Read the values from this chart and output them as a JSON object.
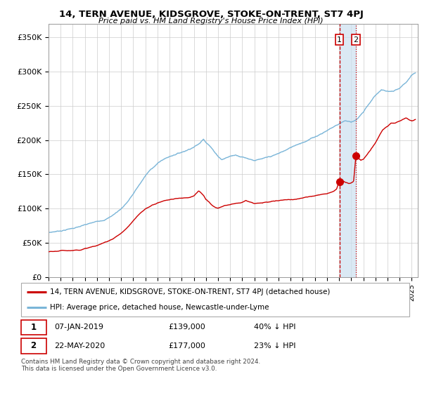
{
  "title": "14, TERN AVENUE, KIDSGROVE, STOKE-ON-TRENT, ST7 4PJ",
  "subtitle": "Price paid vs. HM Land Registry's House Price Index (HPI)",
  "ylabel_ticks": [
    "£0",
    "£50K",
    "£100K",
    "£150K",
    "£200K",
    "£250K",
    "£300K",
    "£350K"
  ],
  "ytick_values": [
    0,
    50000,
    100000,
    150000,
    200000,
    250000,
    300000,
    350000
  ],
  "ylim": [
    0,
    370000
  ],
  "xlim_start": 1995.0,
  "xlim_end": 2025.5,
  "hpi_color": "#7ab5d8",
  "price_color": "#cc0000",
  "vline_color": "#cc0000",
  "span_color": "#cce0f0",
  "marker1_year": 2019.03,
  "marker2_year": 2020.39,
  "marker1_price": 139000,
  "marker2_price": 177000,
  "legend_label1": "14, TERN AVENUE, KIDSGROVE, STOKE-ON-TRENT, ST7 4PJ (detached house)",
  "legend_label2": "HPI: Average price, detached house, Newcastle-under-Lyme",
  "footnote": "Contains HM Land Registry data © Crown copyright and database right 2024.\nThis data is licensed under the Open Government Licence v3.0.",
  "background_color": "#ffffff",
  "grid_color": "#cccccc",
  "hpi_points": [
    [
      1995.0,
      65000
    ],
    [
      1995.5,
      66500
    ],
    [
      1996.0,
      68000
    ],
    [
      1996.5,
      70000
    ],
    [
      1997.0,
      72000
    ],
    [
      1997.5,
      74000
    ],
    [
      1998.0,
      76000
    ],
    [
      1998.5,
      78000
    ],
    [
      1999.0,
      80000
    ],
    [
      1999.5,
      83000
    ],
    [
      2000.0,
      87000
    ],
    [
      2000.5,
      93000
    ],
    [
      2001.0,
      100000
    ],
    [
      2001.5,
      110000
    ],
    [
      2002.0,
      122000
    ],
    [
      2002.5,
      135000
    ],
    [
      2003.0,
      148000
    ],
    [
      2003.5,
      158000
    ],
    [
      2004.0,
      166000
    ],
    [
      2004.5,
      172000
    ],
    [
      2005.0,
      176000
    ],
    [
      2005.5,
      180000
    ],
    [
      2006.0,
      183000
    ],
    [
      2006.5,
      187000
    ],
    [
      2007.0,
      192000
    ],
    [
      2007.5,
      197000
    ],
    [
      2007.8,
      204000
    ],
    [
      2008.0,
      200000
    ],
    [
      2008.3,
      195000
    ],
    [
      2008.6,
      188000
    ],
    [
      2009.0,
      180000
    ],
    [
      2009.3,
      175000
    ],
    [
      2009.6,
      177000
    ],
    [
      2010.0,
      180000
    ],
    [
      2010.5,
      182000
    ],
    [
      2011.0,
      180000
    ],
    [
      2011.5,
      178000
    ],
    [
      2012.0,
      176000
    ],
    [
      2012.5,
      177000
    ],
    [
      2013.0,
      178000
    ],
    [
      2013.5,
      180000
    ],
    [
      2014.0,
      183000
    ],
    [
      2014.5,
      187000
    ],
    [
      2015.0,
      191000
    ],
    [
      2015.5,
      196000
    ],
    [
      2016.0,
      200000
    ],
    [
      2016.5,
      204000
    ],
    [
      2017.0,
      208000
    ],
    [
      2017.5,
      213000
    ],
    [
      2018.0,
      218000
    ],
    [
      2018.5,
      223000
    ],
    [
      2019.0,
      228000
    ],
    [
      2019.5,
      233000
    ],
    [
      2020.0,
      231000
    ],
    [
      2020.5,
      236000
    ],
    [
      2021.0,
      245000
    ],
    [
      2021.5,
      258000
    ],
    [
      2022.0,
      270000
    ],
    [
      2022.5,
      278000
    ],
    [
      2023.0,
      275000
    ],
    [
      2023.5,
      275000
    ],
    [
      2024.0,
      278000
    ],
    [
      2024.5,
      285000
    ],
    [
      2025.0,
      295000
    ],
    [
      2025.3,
      298000
    ]
  ],
  "price_points": [
    [
      1995.0,
      37000
    ],
    [
      1995.5,
      37500
    ],
    [
      1996.0,
      38000
    ],
    [
      1996.5,
      38500
    ],
    [
      1997.0,
      39000
    ],
    [
      1997.5,
      40000
    ],
    [
      1998.0,
      42000
    ],
    [
      1998.5,
      44000
    ],
    [
      1999.0,
      46000
    ],
    [
      1999.5,
      49000
    ],
    [
      2000.0,
      53000
    ],
    [
      2000.5,
      58000
    ],
    [
      2001.0,
      64000
    ],
    [
      2001.5,
      72000
    ],
    [
      2002.0,
      82000
    ],
    [
      2002.5,
      91000
    ],
    [
      2003.0,
      98000
    ],
    [
      2003.5,
      103000
    ],
    [
      2004.0,
      107000
    ],
    [
      2004.5,
      110000
    ],
    [
      2005.0,
      112000
    ],
    [
      2005.5,
      113000
    ],
    [
      2006.0,
      114000
    ],
    [
      2006.5,
      115000
    ],
    [
      2007.0,
      118000
    ],
    [
      2007.2,
      122000
    ],
    [
      2007.4,
      125000
    ],
    [
      2007.6,
      122000
    ],
    [
      2007.8,
      118000
    ],
    [
      2008.0,
      112000
    ],
    [
      2008.3,
      107000
    ],
    [
      2008.6,
      102000
    ],
    [
      2009.0,
      98000
    ],
    [
      2009.3,
      100000
    ],
    [
      2009.6,
      102000
    ],
    [
      2010.0,
      103000
    ],
    [
      2010.5,
      105000
    ],
    [
      2011.0,
      107000
    ],
    [
      2011.3,
      110000
    ],
    [
      2011.6,
      108000
    ],
    [
      2012.0,
      106000
    ],
    [
      2012.5,
      106000
    ],
    [
      2013.0,
      107000
    ],
    [
      2013.5,
      108000
    ],
    [
      2014.0,
      109000
    ],
    [
      2014.5,
      110000
    ],
    [
      2015.0,
      111000
    ],
    [
      2015.5,
      112000
    ],
    [
      2016.0,
      113000
    ],
    [
      2016.5,
      115000
    ],
    [
      2017.0,
      117000
    ],
    [
      2017.5,
      119000
    ],
    [
      2018.0,
      121000
    ],
    [
      2018.5,
      124000
    ],
    [
      2018.8,
      128000
    ],
    [
      2019.0,
      139000
    ],
    [
      2019.1,
      140000
    ],
    [
      2019.2,
      141000
    ],
    [
      2019.5,
      138000
    ],
    [
      2019.8,
      136000
    ],
    [
      2020.0,
      137000
    ],
    [
      2020.2,
      140000
    ],
    [
      2020.39,
      177000
    ],
    [
      2020.5,
      175000
    ],
    [
      2020.8,
      170000
    ],
    [
      2021.0,
      172000
    ],
    [
      2021.3,
      178000
    ],
    [
      2021.6,
      185000
    ],
    [
      2022.0,
      195000
    ],
    [
      2022.3,
      205000
    ],
    [
      2022.6,
      215000
    ],
    [
      2023.0,
      220000
    ],
    [
      2023.3,
      225000
    ],
    [
      2023.6,
      225000
    ],
    [
      2024.0,
      228000
    ],
    [
      2024.5,
      232000
    ],
    [
      2025.0,
      228000
    ],
    [
      2025.3,
      230000
    ]
  ]
}
